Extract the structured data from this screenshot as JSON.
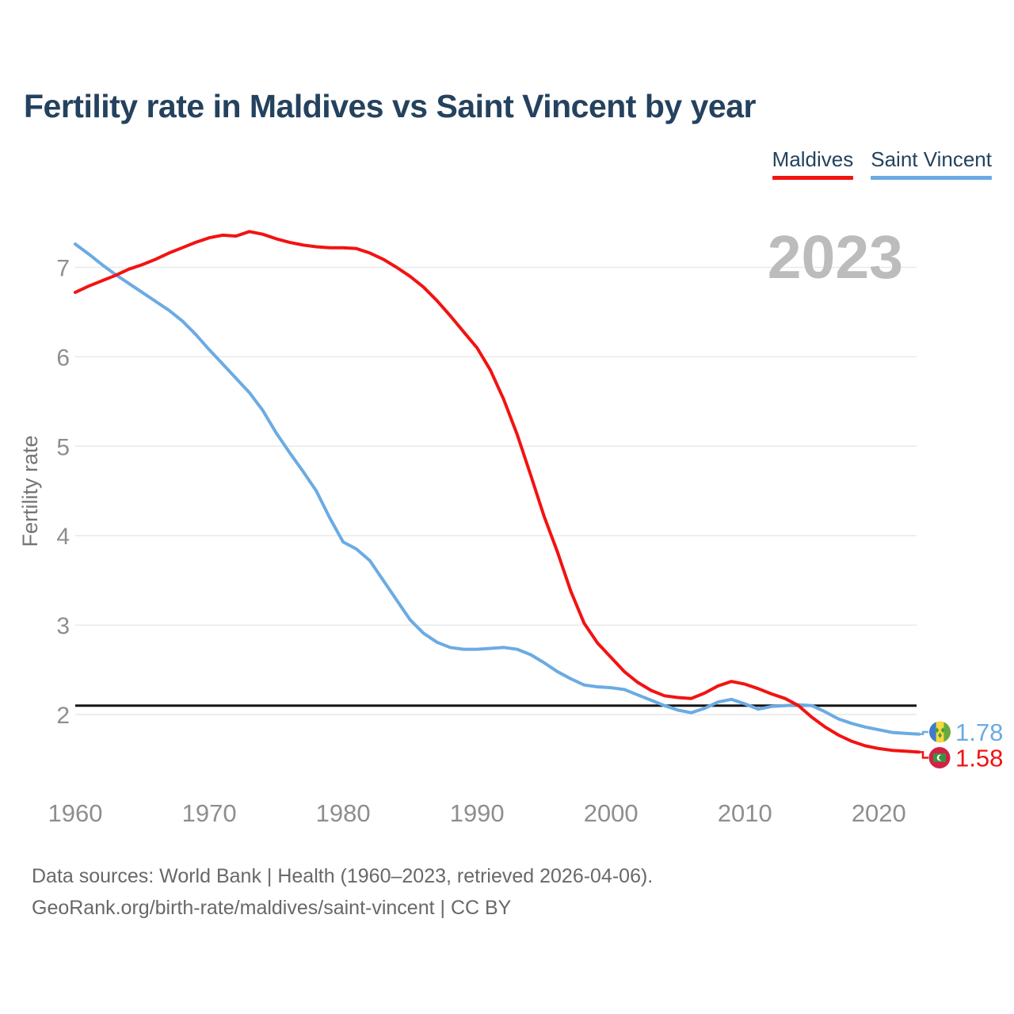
{
  "title": "Fertility rate in Maldives vs Saint Vincent by year",
  "watermark": "2023",
  "legend": [
    {
      "label": "Maldives",
      "color": "#f21311"
    },
    {
      "label": "Saint Vincent",
      "color": "#6babe3"
    }
  ],
  "footer": {
    "line1": "Data sources: World Bank | Health (1960–2023, retrieved 2026-04-06).",
    "line2": "GeoRank.org/birth-rate/maldives/saint-vincent | CC BY"
  },
  "chart_data": {
    "type": "line",
    "title": "Fertility rate in Maldives vs Saint Vincent by year",
    "xlabel": "",
    "ylabel": "Fertility rate",
    "x_ticks": [
      1960,
      1970,
      1980,
      1990,
      2000,
      2010,
      2020
    ],
    "y_ticks": [
      2,
      3,
      4,
      5,
      6,
      7
    ],
    "x_range": [
      1960,
      2023
    ],
    "ylim": [
      1.4,
      7.9
    ],
    "grid": "horizontal",
    "legend_position": "top-right",
    "reference_line": {
      "value": 2.1,
      "color": "#141414"
    },
    "x": [
      1960,
      1961,
      1962,
      1963,
      1964,
      1965,
      1966,
      1967,
      1968,
      1969,
      1970,
      1971,
      1972,
      1973,
      1974,
      1975,
      1976,
      1977,
      1978,
      1979,
      1980,
      1981,
      1982,
      1983,
      1984,
      1985,
      1986,
      1987,
      1988,
      1989,
      1990,
      1991,
      1992,
      1993,
      1994,
      1995,
      1996,
      1997,
      1998,
      1999,
      2000,
      2001,
      2002,
      2003,
      2004,
      2005,
      2006,
      2007,
      2008,
      2009,
      2010,
      2011,
      2012,
      2013,
      2014,
      2015,
      2016,
      2017,
      2018,
      2019,
      2020,
      2021,
      2022,
      2023
    ],
    "series": [
      {
        "name": "Saint Vincent",
        "color": "#6babe3",
        "values": [
          7.26,
          7.15,
          7.03,
          6.92,
          6.82,
          6.72,
          6.62,
          6.52,
          6.4,
          6.25,
          6.08,
          5.92,
          5.76,
          5.6,
          5.4,
          5.15,
          4.93,
          4.72,
          4.5,
          4.2,
          3.93,
          3.85,
          3.72,
          3.5,
          3.28,
          3.06,
          2.91,
          2.81,
          2.75,
          2.73,
          2.73,
          2.74,
          2.75,
          2.73,
          2.67,
          2.58,
          2.48,
          2.4,
          2.33,
          2.31,
          2.3,
          2.28,
          2.22,
          2.16,
          2.1,
          2.05,
          2.02,
          2.07,
          2.14,
          2.17,
          2.12,
          2.06,
          2.09,
          2.1,
          2.11,
          2.1,
          2.03,
          1.95,
          1.9,
          1.86,
          1.83,
          1.8,
          1.79,
          1.78
        ]
      },
      {
        "name": "Maldives",
        "color": "#f21311",
        "values": [
          6.72,
          6.79,
          6.85,
          6.91,
          6.98,
          7.03,
          7.09,
          7.16,
          7.22,
          7.28,
          7.33,
          7.36,
          7.35,
          7.4,
          7.37,
          7.32,
          7.28,
          7.25,
          7.23,
          7.22,
          7.22,
          7.21,
          7.16,
          7.09,
          7.0,
          6.9,
          6.78,
          6.63,
          6.46,
          6.28,
          6.1,
          5.85,
          5.52,
          5.13,
          4.68,
          4.22,
          3.82,
          3.38,
          3.02,
          2.8,
          2.64,
          2.48,
          2.36,
          2.27,
          2.21,
          2.19,
          2.18,
          2.24,
          2.32,
          2.37,
          2.34,
          2.29,
          2.23,
          2.18,
          2.1,
          1.97,
          1.86,
          1.77,
          1.7,
          1.65,
          1.62,
          1.6,
          1.59,
          1.58
        ]
      }
    ],
    "end_labels": [
      {
        "series": "Saint Vincent",
        "value": "1.78"
      },
      {
        "series": "Maldives",
        "value": "1.58"
      }
    ]
  }
}
